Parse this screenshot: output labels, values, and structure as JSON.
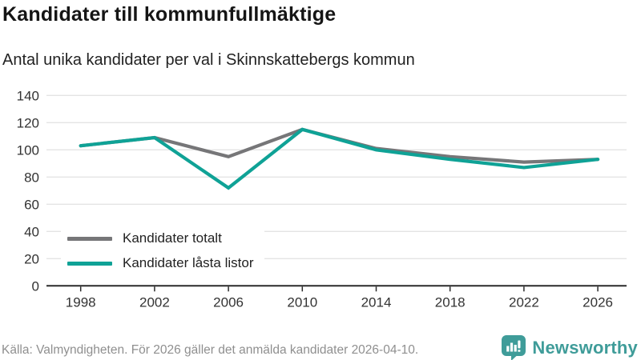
{
  "header": {
    "title": "Kandidater till kommunfullmäktige",
    "subtitle": "Antal unika kandidater per val i Skinnskattebergs kommun"
  },
  "chart_data": {
    "type": "line",
    "title": "Kandidater till kommunfullmäktige",
    "subtitle": "Antal unika kandidater per val i Skinnskattebergs kommun",
    "categories": [
      "1998",
      "2002",
      "2006",
      "2010",
      "2014",
      "2018",
      "2022",
      "2026"
    ],
    "series": [
      {
        "name": "Kandidater totalt",
        "color": "#767678",
        "values": [
          103,
          109,
          95,
          115,
          101,
          95,
          91,
          93
        ]
      },
      {
        "name": "Kandidater låsta listor",
        "color": "#0fa296",
        "values": [
          103,
          109,
          72,
          115,
          100,
          93,
          87,
          93
        ]
      }
    ],
    "ylim": [
      0,
      140
    ],
    "yticks": [
      0,
      20,
      40,
      60,
      80,
      100,
      120,
      140
    ],
    "xlabel": "",
    "ylabel": "",
    "grid": true,
    "legend_position": "inside-bottom-left"
  },
  "colors": {
    "grid": "#e4e4e4",
    "axis": "#2a2a2a",
    "tick_label": "#333333",
    "footer_text": "#8f8f8f",
    "brand": "#3f9c99"
  },
  "footer": {
    "source": "Källa: Valmyndigheten. För 2026 gäller det anmälda kandidater 2026-04-10.",
    "brand_name": "Newsworthy"
  },
  "icons": {
    "logo": "newsworthy-speech-bubble-barchart"
  }
}
